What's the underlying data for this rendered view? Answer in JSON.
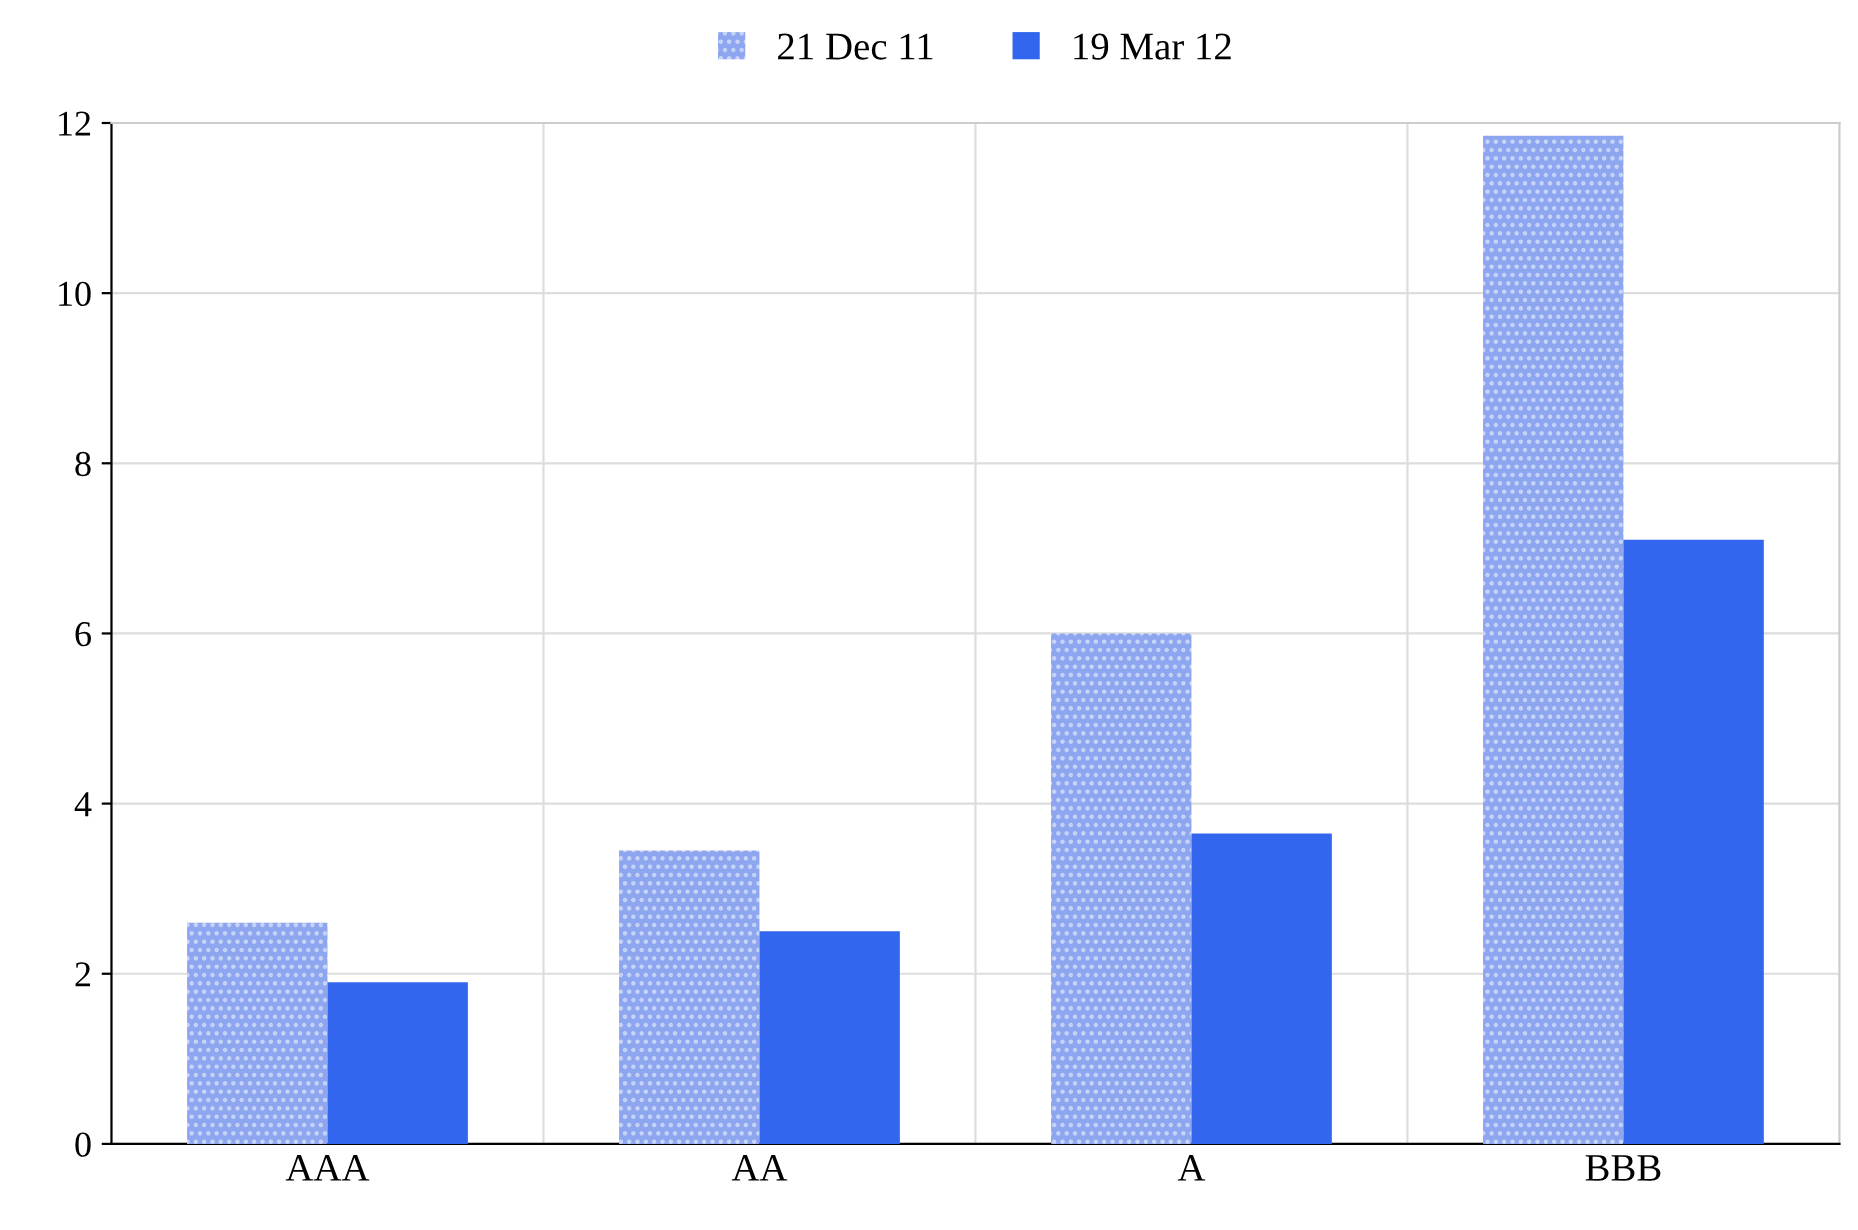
{
  "chart_data": {
    "type": "bar",
    "categories": [
      "AAA",
      "AA",
      "A",
      "BBB"
    ],
    "series": [
      {
        "name": "21 Dec 11",
        "color": "#8ea6f0",
        "values": [
          2.6,
          3.45,
          6.0,
          11.85
        ]
      },
      {
        "name": "19 Mar 12",
        "color": "#3366ee",
        "values": [
          1.9,
          2.5,
          3.65,
          7.1
        ]
      }
    ],
    "ylim": [
      0,
      12
    ],
    "yticks": [
      0,
      2,
      4,
      6,
      8,
      10,
      12
    ],
    "grid": true,
    "legend": "top"
  }
}
